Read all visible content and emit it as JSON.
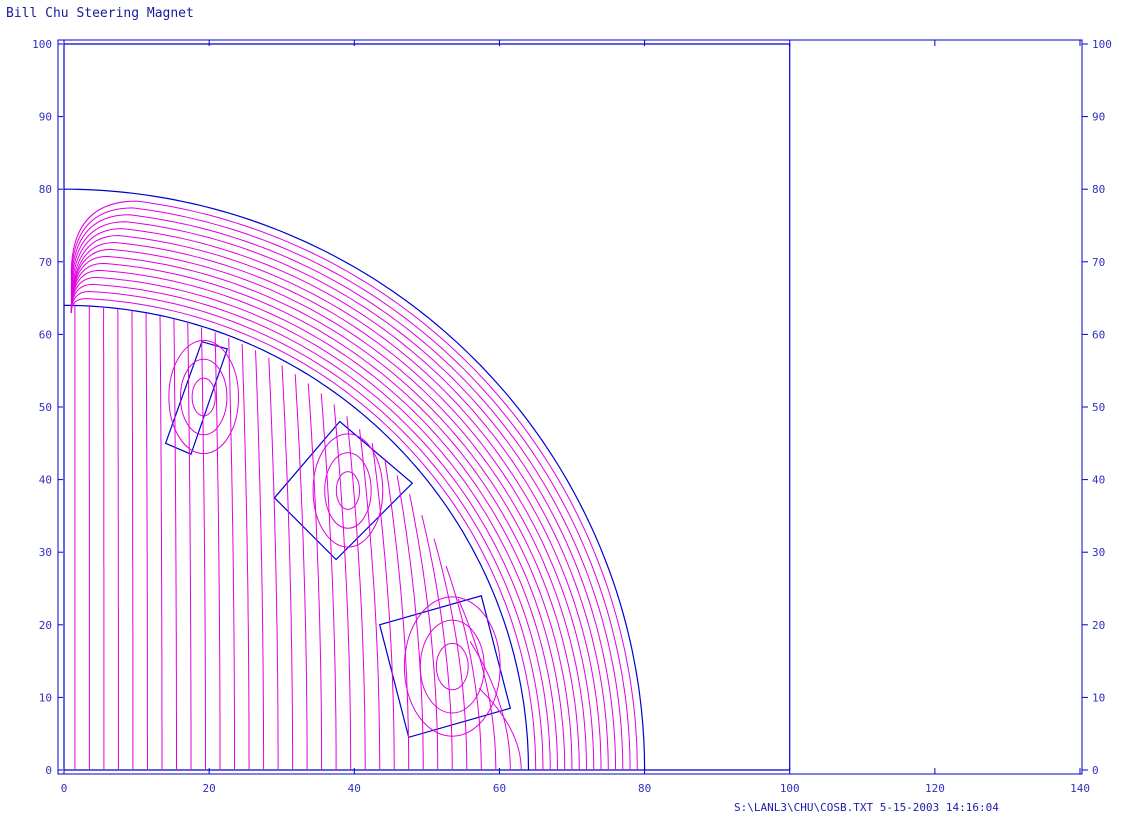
{
  "title": "Bill Chu Steering Magnet",
  "footer": "S:\\LANL3\\CHU\\COSB.TXT  5-15-2003  14:16:04",
  "colors": {
    "frame": "#0000cc",
    "field_lines": "#e000e0",
    "text": "#3030c0"
  },
  "chart_data": {
    "type": "line",
    "xlim": [
      0,
      140
    ],
    "ylim": [
      0,
      100
    ],
    "x_ticks": [
      "0",
      "20",
      "40",
      "60",
      "80",
      "100",
      "120",
      "140"
    ],
    "y_ticks": [
      "0",
      "10",
      "20",
      "30",
      "40",
      "50",
      "60",
      "70",
      "80",
      "90",
      "100"
    ],
    "grid": false,
    "geometry": {
      "boundary_box": [
        [
          0,
          0
        ],
        [
          100,
          0
        ],
        [
          100,
          100
        ],
        [
          0,
          100
        ]
      ],
      "inner_arc_radius": 64,
      "outer_arc_radius": 80,
      "coils": [
        [
          [
            14,
            45
          ],
          [
            17.5,
            43.5
          ],
          [
            22.5,
            58
          ],
          [
            19,
            59
          ]
        ],
        [
          [
            29,
            37.5
          ],
          [
            38,
            48
          ],
          [
            48,
            39.5
          ],
          [
            37.5,
            29
          ]
        ],
        [
          [
            43.5,
            20
          ],
          [
            57.5,
            24
          ],
          [
            61.5,
            8.5
          ],
          [
            47.5,
            4.5
          ]
        ]
      ]
    },
    "field_lines": {
      "interior_x_at_base": [
        1.5,
        3.5,
        5.5,
        7.5,
        9.5,
        11.5,
        13.5,
        15.5,
        17.5,
        19.5,
        21.5,
        23.5,
        25.5,
        27.5,
        29.5,
        31.5,
        33.5,
        35.5,
        37.5,
        39.5,
        41.5,
        43.5,
        45.5,
        47.5,
        49.5,
        51.5,
        53.5,
        55.5,
        57.5,
        59.5,
        61.5,
        63
      ],
      "shell_radii": [
        65,
        66,
        67,
        68,
        69,
        70,
        71,
        72,
        73,
        74,
        75,
        76,
        77,
        78,
        79
      ]
    }
  }
}
